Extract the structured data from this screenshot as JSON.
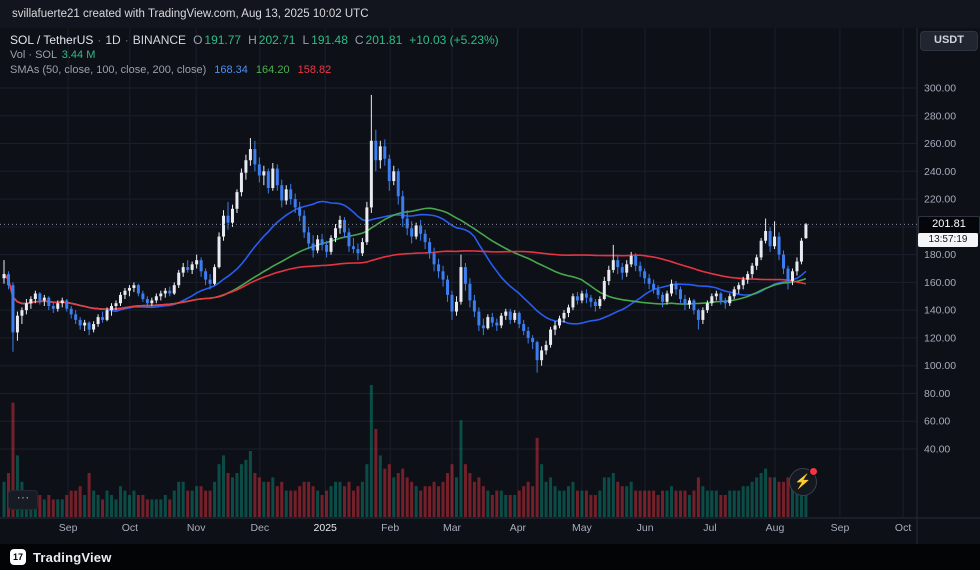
{
  "attribution": "svillafuerte21 created with TradingView.com, Aug 13, 2025 10:02 UTC",
  "toolbar": {
    "currency_button": "USDT"
  },
  "legend": {
    "symbol": "SOL / TetherUS",
    "dot": "·",
    "interval": "1D",
    "exchange": "BINANCE",
    "o_label": "O",
    "o": "191.77",
    "h_label": "H",
    "h": "202.71",
    "l_label": "L",
    "l": "191.48",
    "c_label": "C",
    "c": "201.81",
    "change": "+10.03 (+5.23%)",
    "vol_label": "Vol · SOL",
    "vol_value": "3.44 M",
    "sma_label": "SMAs (50, close, 100, close, 200, close)",
    "sma50": "168.34",
    "sma100": "164.20",
    "sma200": "158.82"
  },
  "price_axis": {
    "labels": [
      "300.00",
      "280.00",
      "260.00",
      "240.00",
      "220.00",
      "200.00",
      "180.00",
      "160.00",
      "140.00",
      "120.00",
      "100.00",
      "80.00",
      "60.00",
      "40.00"
    ],
    "last_price": "201.81",
    "countdown": "13:57:19"
  },
  "time_axis": {
    "labels": [
      "Sep",
      "Oct",
      "Nov",
      "Dec",
      "2025",
      "Feb",
      "Mar",
      "Apr",
      "May",
      "Jun",
      "Jul",
      "Aug",
      "Sep",
      "Oct"
    ],
    "emphasized": "2025"
  },
  "overlay_buttons": {
    "more": "⋯",
    "flash_icon": "⚡"
  },
  "footer": {
    "brand": "TradingView",
    "mark": "17"
  },
  "colors": {
    "background": "#0d1017",
    "grid": "#1a1f2c",
    "separator": "#262b38",
    "axis_text": "#a6adba",
    "axis_text_bright": "#e6e9ef",
    "up": "#e8ebf2",
    "down": "#3c7df0",
    "vol_up": "#089981",
    "vol_down": "#f23645",
    "sma50": "#2962ff",
    "sma100": "#4caf50",
    "sma200": "#f23645",
    "last_price_line": "#8a8f9b",
    "value_up_text": "#2ebd85"
  },
  "chart_data": {
    "type": "candlestick+volume",
    "title": "SOL / TetherUS · 1D · BINANCE",
    "symbol": "SOL/USDT",
    "interval": "1D",
    "exchange": "BINANCE",
    "x_range": [
      "Aug 2024",
      "Oct 2025"
    ],
    "price_axis_range": [
      40,
      310
    ],
    "grid": true,
    "legend_position": "top-left",
    "sma_settings": [
      {
        "period": 50,
        "source": "close",
        "last": 168.34
      },
      {
        "period": 100,
        "source": "close",
        "last": 164.2
      },
      {
        "period": 200,
        "source": "close",
        "last": 158.82
      }
    ],
    "last_candle": {
      "open": 191.77,
      "high": 202.71,
      "low": 191.48,
      "close": 201.81,
      "volume_m": 3.44,
      "change": 10.03,
      "change_pct": 5.23
    },
    "candles_note": "approx OHLCV, each candle ~2 days, Aug 2024 - Aug 13 2025, volume in millions",
    "candles": [
      [
        163,
        176,
        159,
        166,
        4
      ],
      [
        166,
        168,
        155,
        158,
        5
      ],
      [
        158,
        160,
        110,
        124,
        13
      ],
      [
        124,
        139,
        118,
        136,
        7
      ],
      [
        136,
        142,
        130,
        140,
        4
      ],
      [
        140,
        148,
        137,
        145,
        3
      ],
      [
        145,
        150,
        141,
        148,
        2.5
      ],
      [
        148,
        154,
        145,
        152,
        3
      ],
      [
        152,
        153,
        144,
        147,
        2.5
      ],
      [
        147,
        151,
        143,
        149,
        2
      ],
      [
        149,
        150,
        140,
        143,
        2.5
      ],
      [
        143,
        146,
        138,
        141,
        2
      ],
      [
        141,
        147,
        139,
        145,
        2
      ],
      [
        145,
        149,
        142,
        147,
        2
      ],
      [
        147,
        148,
        139,
        141,
        2.5
      ],
      [
        141,
        143,
        134,
        137,
        3
      ],
      [
        137,
        140,
        130,
        133,
        3
      ],
      [
        133,
        135,
        126,
        129,
        3.5
      ],
      [
        129,
        133,
        125,
        131,
        2.5
      ],
      [
        131,
        132,
        122,
        126,
        5
      ],
      [
        126,
        132,
        124,
        130,
        3
      ],
      [
        130,
        137,
        128,
        135,
        2.5
      ],
      [
        135,
        139,
        131,
        133,
        2
      ],
      [
        133,
        142,
        132,
        140,
        3
      ],
      [
        140,
        145,
        136,
        143,
        2.5
      ],
      [
        143,
        147,
        140,
        145,
        2
      ],
      [
        145,
        153,
        143,
        151,
        3.5
      ],
      [
        151,
        156,
        148,
        154,
        3
      ],
      [
        154,
        158,
        150,
        156,
        2.5
      ],
      [
        156,
        160,
        153,
        158,
        3
      ],
      [
        158,
        159,
        150,
        152,
        2.5
      ],
      [
        152,
        154,
        146,
        148,
        2.5
      ],
      [
        148,
        150,
        142,
        145,
        2
      ],
      [
        145,
        149,
        143,
        147,
        2
      ],
      [
        147,
        152,
        145,
        150,
        2
      ],
      [
        150,
        154,
        147,
        152,
        2
      ],
      [
        152,
        156,
        149,
        154,
        2.5
      ],
      [
        154,
        157,
        150,
        152,
        2
      ],
      [
        152,
        160,
        151,
        158,
        3
      ],
      [
        158,
        169,
        156,
        167,
        4
      ],
      [
        167,
        174,
        164,
        171,
        4
      ],
      [
        171,
        176,
        167,
        169,
        3
      ],
      [
        169,
        175,
        166,
        173,
        3
      ],
      [
        173,
        180,
        170,
        176,
        3.5
      ],
      [
        176,
        178,
        164,
        168,
        3.5
      ],
      [
        168,
        170,
        158,
        162,
        3
      ],
      [
        162,
        166,
        155,
        159,
        3
      ],
      [
        159,
        173,
        158,
        171,
        4
      ],
      [
        171,
        196,
        170,
        193,
        6
      ],
      [
        193,
        212,
        190,
        208,
        7
      ],
      [
        208,
        218,
        198,
        203,
        5
      ],
      [
        203,
        216,
        200,
        213,
        4.5
      ],
      [
        213,
        227,
        210,
        225,
        5
      ],
      [
        225,
        242,
        222,
        239,
        6
      ],
      [
        239,
        252,
        234,
        248,
        6.5
      ],
      [
        248,
        264,
        244,
        256,
        7.5
      ],
      [
        256,
        262,
        240,
        245,
        5
      ],
      [
        245,
        250,
        232,
        237,
        4.5
      ],
      [
        237,
        244,
        230,
        240,
        4
      ],
      [
        240,
        242,
        224,
        228,
        4
      ],
      [
        228,
        246,
        226,
        242,
        4.5
      ],
      [
        242,
        245,
        226,
        230,
        3.5
      ],
      [
        230,
        234,
        214,
        219,
        4
      ],
      [
        219,
        230,
        216,
        227,
        3
      ],
      [
        227,
        231,
        216,
        220,
        3
      ],
      [
        220,
        224,
        210,
        214,
        3
      ],
      [
        214,
        218,
        204,
        208,
        3.5
      ],
      [
        208,
        212,
        192,
        196,
        4
      ],
      [
        196,
        200,
        184,
        188,
        4
      ],
      [
        188,
        194,
        178,
        183,
        3.5
      ],
      [
        183,
        194,
        181,
        191,
        3
      ],
      [
        191,
        195,
        183,
        187,
        2.5
      ],
      [
        187,
        190,
        178,
        182,
        3
      ],
      [
        182,
        194,
        180,
        192,
        3.5
      ],
      [
        192,
        202,
        189,
        199,
        4
      ],
      [
        199,
        208,
        195,
        205,
        4
      ],
      [
        205,
        207,
        192,
        196,
        3.5
      ],
      [
        196,
        199,
        182,
        186,
        4
      ],
      [
        186,
        192,
        181,
        184,
        3
      ],
      [
        184,
        188,
        176,
        181,
        3.5
      ],
      [
        181,
        192,
        179,
        189,
        4
      ],
      [
        189,
        218,
        187,
        214,
        6
      ],
      [
        214,
        295,
        210,
        262,
        15
      ],
      [
        262,
        270,
        240,
        248,
        10
      ],
      [
        248,
        262,
        242,
        258,
        7
      ],
      [
        258,
        263,
        244,
        249,
        5.5
      ],
      [
        249,
        252,
        226,
        233,
        6
      ],
      [
        233,
        244,
        230,
        240,
        4.5
      ],
      [
        240,
        242,
        216,
        222,
        5
      ],
      [
        222,
        226,
        200,
        206,
        5.5
      ],
      [
        206,
        212,
        194,
        199,
        4.5
      ],
      [
        199,
        204,
        188,
        193,
        4
      ],
      [
        193,
        203,
        191,
        201,
        3.5
      ],
      [
        201,
        205,
        190,
        195,
        3
      ],
      [
        195,
        198,
        184,
        189,
        3.5
      ],
      [
        189,
        192,
        177,
        181,
        3.5
      ],
      [
        181,
        185,
        168,
        173,
        4
      ],
      [
        173,
        177,
        163,
        168,
        3.5
      ],
      [
        168,
        172,
        157,
        162,
        4
      ],
      [
        162,
        165,
        146,
        151,
        5
      ],
      [
        151,
        154,
        133,
        139,
        6
      ],
      [
        139,
        150,
        136,
        146,
        4.5
      ],
      [
        146,
        180,
        144,
        171,
        11
      ],
      [
        171,
        174,
        154,
        159,
        6
      ],
      [
        159,
        163,
        142,
        147,
        5
      ],
      [
        147,
        151,
        135,
        139,
        4
      ],
      [
        139,
        142,
        125,
        129,
        4.5
      ],
      [
        129,
        134,
        122,
        127,
        3.5
      ],
      [
        127,
        137,
        126,
        135,
        3
      ],
      [
        135,
        138,
        128,
        131,
        2.5
      ],
      [
        131,
        134,
        125,
        129,
        3
      ],
      [
        129,
        138,
        127,
        136,
        3
      ],
      [
        136,
        141,
        133,
        139,
        2.5
      ],
      [
        139,
        141,
        130,
        133,
        2.5
      ],
      [
        133,
        140,
        131,
        138,
        2.5
      ],
      [
        138,
        139,
        127,
        130,
        3
      ],
      [
        130,
        133,
        122,
        125,
        3.5
      ],
      [
        125,
        128,
        116,
        120,
        4
      ],
      [
        120,
        122,
        112,
        117,
        3.5
      ],
      [
        117,
        118,
        95,
        104,
        9
      ],
      [
        104,
        114,
        100,
        111,
        6
      ],
      [
        111,
        118,
        108,
        115,
        4
      ],
      [
        115,
        128,
        113,
        126,
        4.5
      ],
      [
        126,
        132,
        122,
        129,
        3.5
      ],
      [
        129,
        136,
        127,
        134,
        3
      ],
      [
        134,
        140,
        131,
        138,
        3
      ],
      [
        138,
        144,
        135,
        142,
        3.5
      ],
      [
        142,
        152,
        140,
        150,
        4
      ],
      [
        150,
        153,
        144,
        147,
        3
      ],
      [
        147,
        154,
        145,
        152,
        3
      ],
      [
        152,
        155,
        145,
        149,
        3
      ],
      [
        149,
        151,
        142,
        146,
        2.5
      ],
      [
        146,
        148,
        139,
        143,
        2.5
      ],
      [
        143,
        150,
        141,
        148,
        3
      ],
      [
        148,
        164,
        147,
        161,
        4.5
      ],
      [
        161,
        172,
        158,
        169,
        4.5
      ],
      [
        169,
        187,
        167,
        176,
        5
      ],
      [
        176,
        180,
        166,
        171,
        4
      ],
      [
        171,
        174,
        162,
        167,
        3.5
      ],
      [
        167,
        176,
        164,
        173,
        3.5
      ],
      [
        173,
        182,
        171,
        179,
        4
      ],
      [
        179,
        181,
        168,
        172,
        3
      ],
      [
        172,
        175,
        164,
        168,
        3
      ],
      [
        168,
        170,
        159,
        163,
        3
      ],
      [
        163,
        166,
        155,
        159,
        3
      ],
      [
        159,
        162,
        152,
        155,
        3
      ],
      [
        155,
        158,
        148,
        151,
        2.5
      ],
      [
        151,
        153,
        142,
        146,
        3
      ],
      [
        146,
        154,
        144,
        152,
        3
      ],
      [
        152,
        162,
        150,
        159,
        3.5
      ],
      [
        159,
        161,
        151,
        155,
        3
      ],
      [
        155,
        157,
        145,
        148,
        3
      ],
      [
        148,
        151,
        140,
        144,
        3
      ],
      [
        144,
        149,
        141,
        147,
        2.5
      ],
      [
        147,
        148,
        137,
        140,
        3
      ],
      [
        140,
        141,
        126,
        133,
        4.5
      ],
      [
        133,
        142,
        130,
        140,
        3.5
      ],
      [
        140,
        147,
        138,
        145,
        3
      ],
      [
        145,
        152,
        143,
        150,
        3
      ],
      [
        150,
        154,
        147,
        152,
        3
      ],
      [
        152,
        153,
        144,
        147,
        2.5
      ],
      [
        147,
        149,
        141,
        145,
        2.5
      ],
      [
        145,
        152,
        143,
        150,
        3
      ],
      [
        150,
        157,
        148,
        155,
        3
      ],
      [
        155,
        160,
        152,
        158,
        3
      ],
      [
        158,
        164,
        155,
        162,
        3.5
      ],
      [
        162,
        168,
        159,
        166,
        3.5
      ],
      [
        166,
        174,
        163,
        172,
        4
      ],
      [
        172,
        180,
        169,
        178,
        4.5
      ],
      [
        178,
        192,
        176,
        190,
        5
      ],
      [
        190,
        206,
        188,
        197,
        5.5
      ],
      [
        197,
        200,
        182,
        186,
        4.5
      ],
      [
        186,
        204,
        184,
        193,
        4.5
      ],
      [
        193,
        196,
        176,
        180,
        4
      ],
      [
        180,
        183,
        166,
        170,
        4
      ],
      [
        170,
        172,
        155,
        161,
        4.5
      ],
      [
        161,
        170,
        158,
        168,
        3.5
      ],
      [
        168,
        178,
        165,
        175,
        3.5
      ],
      [
        175,
        192,
        173,
        190,
        4
      ],
      [
        191.77,
        202.71,
        191.48,
        201.81,
        3.44
      ]
    ]
  }
}
